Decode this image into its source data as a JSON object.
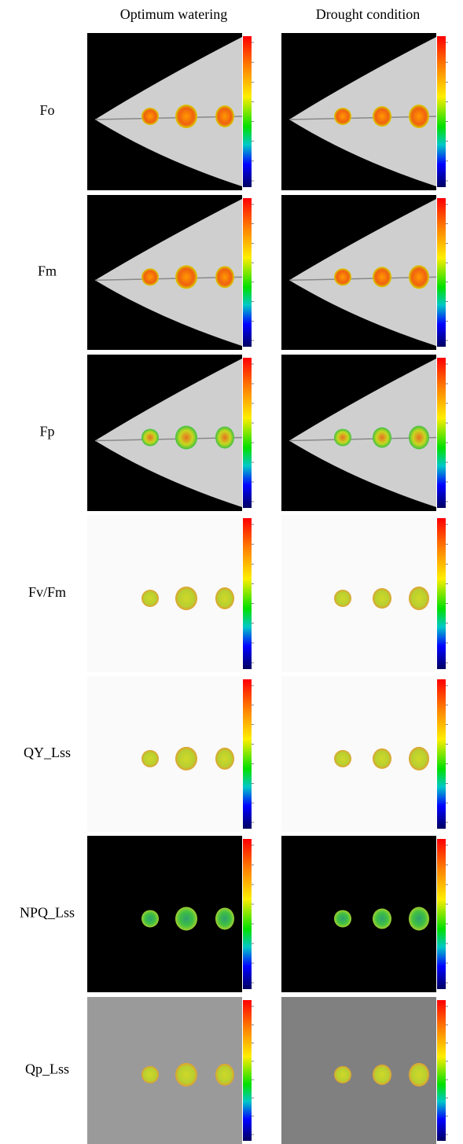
{
  "columns": [
    "Optimum watering",
    "Drought condition"
  ],
  "rows": [
    "Fo",
    "Fm",
    "Fp",
    "Fv/Fm",
    "QY_Lss",
    "NPQ_Lss",
    "Qp_Lss"
  ]
}
